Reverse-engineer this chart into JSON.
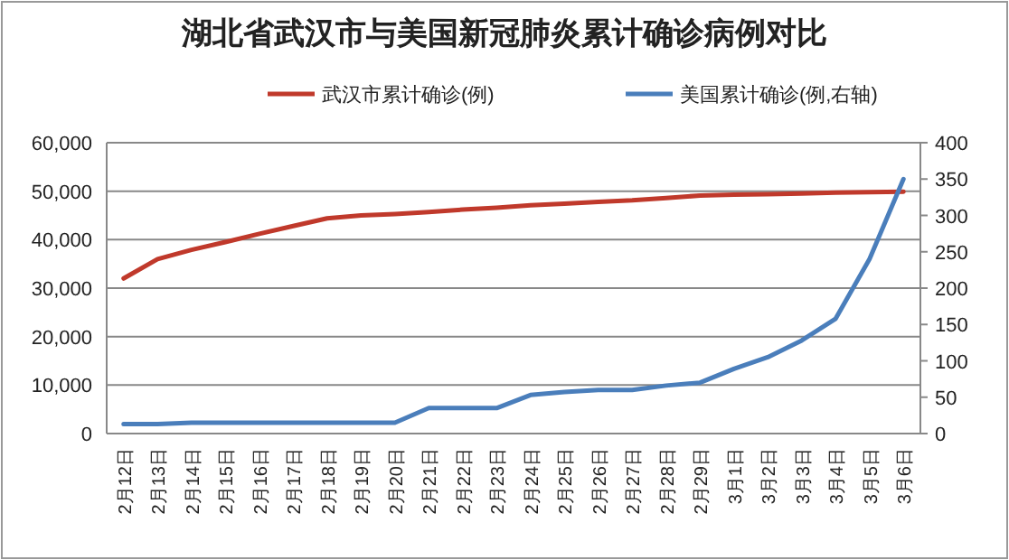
{
  "chart_data": {
    "type": "line",
    "title": "湖北省武汉市与美国新冠肺炎累计确诊病例对比",
    "categories": [
      "2月12日",
      "2月13日",
      "2月14日",
      "2月15日",
      "2月16日",
      "2月17日",
      "2月18日",
      "2月19日",
      "2月20日",
      "2月21日",
      "2月22日",
      "2月23日",
      "2月24日",
      "2月25日",
      "2月26日",
      "2月27日",
      "2月28日",
      "2月29日",
      "3月1日",
      "3月2日",
      "3月3日",
      "3月4日",
      "3月5日",
      "3月6日"
    ],
    "series": [
      {
        "name": "武汉市累计确诊(例)",
        "color": "#c0392b",
        "values": [
          32000,
          36000,
          37900,
          39500,
          41200,
          42800,
          44400,
          45000,
          45300,
          45700,
          46200,
          46600,
          47100,
          47400,
          47800,
          48100,
          48600,
          49100,
          49300,
          49400,
          49500,
          49700,
          49800,
          49900
        ]
      },
      {
        "name": "美国累计确诊(例,右轴)",
        "color": "#4a7ebb",
        "axis": "y2",
        "values": [
          13,
          13,
          15,
          15,
          15,
          15,
          15,
          15,
          15,
          35,
          35,
          35,
          53,
          57,
          60,
          60,
          66,
          70,
          89,
          105,
          128,
          158,
          240,
          350
        ]
      }
    ],
    "ylim": [
      0,
      60000
    ],
    "yticks": [
      {
        "value": 0,
        "label": "0"
      },
      {
        "value": 10000,
        "label": "10,000"
      },
      {
        "value": 20000,
        "label": "20,000"
      },
      {
        "value": 30000,
        "label": "30,000"
      },
      {
        "value": 40000,
        "label": "40,000"
      },
      {
        "value": 50000,
        "label": "50,000"
      },
      {
        "value": 60000,
        "label": "60,000"
      }
    ],
    "y2lim": [
      0,
      400
    ],
    "y2ticks": [
      0,
      50,
      100,
      150,
      200,
      250,
      300,
      350,
      400
    ],
    "grid": "y",
    "legend": "top"
  }
}
